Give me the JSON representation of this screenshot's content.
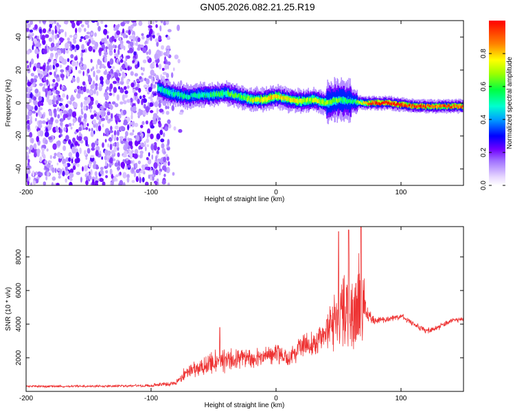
{
  "figure_title": "GN05.2026.082.21.25.R19",
  "chart_data": [
    {
      "type": "heatmap",
      "name": "spectrogram",
      "xlabel": "Height of straight line (km)",
      "ylabel": "Frequency (Hz)",
      "xlim": [
        -200,
        150
      ],
      "ylim": [
        -50,
        50
      ],
      "xticks": [
        -200,
        -100,
        0,
        100
      ],
      "yticks": [
        -40,
        -20,
        0,
        20,
        40
      ],
      "colorbar": {
        "label": "Normalized spectral amplitude",
        "range": [
          0,
          1
        ],
        "ticks": [
          0,
          0.2,
          0.4,
          0.6,
          0.8
        ],
        "tick_labels": [
          "0.0",
          "0.2",
          "0.4",
          "0.6",
          "0.8"
        ]
      },
      "noise_region": {
        "x_range": [
          -200,
          -85
        ],
        "y_range": [
          -50,
          50
        ],
        "amplitude": 0.15
      },
      "ridge": [
        {
          "x": -95,
          "y": 9
        },
        {
          "x": -90,
          "y": 7
        },
        {
          "x": -80,
          "y": 5
        },
        {
          "x": -70,
          "y": 4
        },
        {
          "x": -60,
          "y": 5
        },
        {
          "x": -50,
          "y": 5
        },
        {
          "x": -40,
          "y": 6
        },
        {
          "x": -30,
          "y": 4
        },
        {
          "x": -20,
          "y": 2
        },
        {
          "x": -10,
          "y": 2
        },
        {
          "x": 0,
          "y": 4
        },
        {
          "x": 10,
          "y": 2
        },
        {
          "x": 20,
          "y": 1
        },
        {
          "x": 30,
          "y": 2
        },
        {
          "x": 40,
          "y": 0
        },
        {
          "x": 50,
          "y": 2
        },
        {
          "x": 60,
          "y": 1
        },
        {
          "x": 70,
          "y": 0
        },
        {
          "x": 80,
          "y": 0
        },
        {
          "x": 90,
          "y": 0
        },
        {
          "x": 100,
          "y": -1
        },
        {
          "x": 110,
          "y": -2
        },
        {
          "x": 120,
          "y": -2
        },
        {
          "x": 130,
          "y": -2
        },
        {
          "x": 140,
          "y": -2
        },
        {
          "x": 150,
          "y": -2
        }
      ],
      "ridge_amplitude": [
        {
          "x": -95,
          "v": 0.5
        },
        {
          "x": -60,
          "v": 0.5
        },
        {
          "x": -30,
          "v": 0.6
        },
        {
          "x": -10,
          "v": 0.8
        },
        {
          "x": 20,
          "v": 0.7
        },
        {
          "x": 40,
          "v": 0.7
        },
        {
          "x": 60,
          "v": 0.5
        },
        {
          "x": 80,
          "v": 1.0
        },
        {
          "x": 120,
          "v": 0.9
        },
        {
          "x": 150,
          "v": 0.9
        }
      ]
    },
    {
      "type": "line",
      "name": "snr",
      "xlabel": "Height of straight line (km)",
      "ylabel": "SNR (10 * v/v)",
      "xlim": [
        -200,
        150
      ],
      "ylim": [
        0,
        9800
      ],
      "xticks": [
        -200,
        -100,
        0,
        100
      ],
      "yticks": [
        2000,
        4000,
        6000,
        8000
      ],
      "color": "#ee3333",
      "envelope": [
        {
          "x": -200,
          "mean": 300,
          "amp": 80
        },
        {
          "x": -150,
          "mean": 300,
          "amp": 80
        },
        {
          "x": -100,
          "mean": 350,
          "amp": 100
        },
        {
          "x": -80,
          "mean": 500,
          "amp": 200
        },
        {
          "x": -75,
          "mean": 900,
          "amp": 400
        },
        {
          "x": -70,
          "mean": 1200,
          "amp": 500
        },
        {
          "x": -60,
          "mean": 1500,
          "amp": 700
        },
        {
          "x": -50,
          "mean": 1700,
          "amp": 800
        },
        {
          "x": -40,
          "mean": 1800,
          "amp": 900
        },
        {
          "x": -30,
          "mean": 2000,
          "amp": 900
        },
        {
          "x": -20,
          "mean": 1900,
          "amp": 800
        },
        {
          "x": -10,
          "mean": 2100,
          "amp": 700
        },
        {
          "x": 0,
          "mean": 2300,
          "amp": 700
        },
        {
          "x": 10,
          "mean": 2100,
          "amp": 700
        },
        {
          "x": 20,
          "mean": 2600,
          "amp": 800
        },
        {
          "x": 30,
          "mean": 2900,
          "amp": 900
        },
        {
          "x": 40,
          "mean": 3500,
          "amp": 1300
        },
        {
          "x": 50,
          "mean": 4200,
          "amp": 2500
        },
        {
          "x": 55,
          "mean": 4500,
          "amp": 3000
        },
        {
          "x": 60,
          "mean": 4800,
          "amp": 3200
        },
        {
          "x": 65,
          "mean": 5000,
          "amp": 3500
        },
        {
          "x": 70,
          "mean": 5100,
          "amp": 3000
        },
        {
          "x": 72,
          "mean": 4600,
          "amp": 600
        },
        {
          "x": 80,
          "mean": 4200,
          "amp": 250
        },
        {
          "x": 90,
          "mean": 4300,
          "amp": 200
        },
        {
          "x": 100,
          "mean": 4500,
          "amp": 200
        },
        {
          "x": 110,
          "mean": 4000,
          "amp": 200
        },
        {
          "x": 120,
          "mean": 3600,
          "amp": 200
        },
        {
          "x": 130,
          "mean": 3800,
          "amp": 200
        },
        {
          "x": 140,
          "mean": 4200,
          "amp": 200
        },
        {
          "x": 150,
          "mean": 4300,
          "amp": 200
        }
      ],
      "peaks": [
        {
          "x": -45,
          "y": 3800
        },
        {
          "x": 50,
          "y": 9500
        },
        {
          "x": 58,
          "y": 9600
        },
        {
          "x": 68,
          "y": 9800
        }
      ]
    }
  ]
}
